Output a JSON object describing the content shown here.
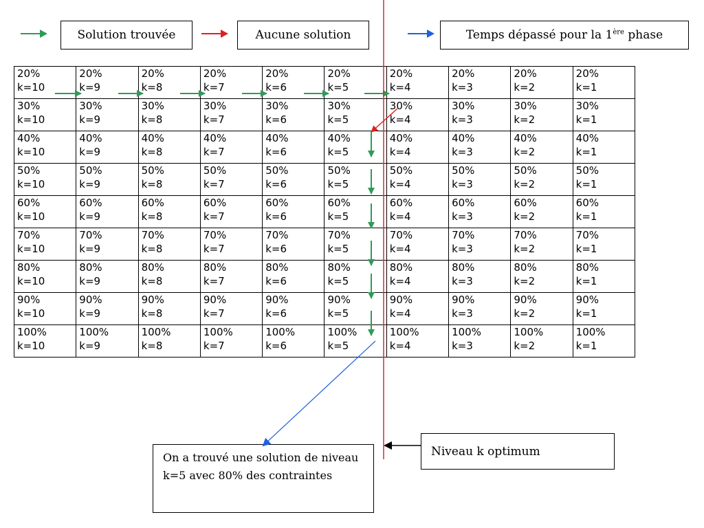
{
  "legend": {
    "found": "Solution trouvée",
    "none": "Aucune solution",
    "timeout_prefix": "Temps dépassé pour la 1",
    "timeout_sup": "ère",
    "timeout_suffix": " phase"
  },
  "colors": {
    "found": "#2e9b57",
    "none": "#e02020",
    "timeout": "#2060e0",
    "optimum_line": "#d03030"
  },
  "grid": {
    "rows": [
      {
        "pct": "20%",
        "ks": [
          "k=10",
          "k=9",
          "k=8",
          "k=7",
          "k=6",
          "k=5",
          "k=4",
          "k=3",
          "k=2",
          "k=1"
        ]
      },
      {
        "pct": "30%",
        "ks": [
          "k=10",
          "k=9",
          "k=8",
          "k=7",
          "k=6",
          "k=5",
          "k=4",
          "k=3",
          "k=2",
          "k=1"
        ]
      },
      {
        "pct": "40%",
        "ks": [
          "k=10",
          "k=9",
          "k=8",
          "k=7",
          "k=6",
          "k=5",
          "k=4",
          "k=3",
          "k=2",
          "k=1"
        ]
      },
      {
        "pct": "50%",
        "ks": [
          "k=10",
          "k=9",
          "k=8",
          "k=7",
          "k=6",
          "k=5",
          "k=4",
          "k=3",
          "k=2",
          "k=1"
        ]
      },
      {
        "pct": "60%",
        "ks": [
          "k=10",
          "k=9",
          "k=8",
          "k=7",
          "k=6",
          "k=5",
          "k=4",
          "k=3",
          "k=2",
          "k=1"
        ]
      },
      {
        "pct": "70%",
        "ks": [
          "k=10",
          "k=9",
          "k=8",
          "k=7",
          "k=6",
          "k=5",
          "k=4",
          "k=3",
          "k=2",
          "k=1"
        ]
      },
      {
        "pct": "80%",
        "ks": [
          "k=10",
          "k=9",
          "k=8",
          "k=7",
          "k=6",
          "k=5",
          "k=4",
          "k=3",
          "k=2",
          "k=1"
        ]
      },
      {
        "pct": "90%",
        "ks": [
          "k=10",
          "k=9",
          "k=8",
          "k=7",
          "k=6",
          "k=5",
          "k=4",
          "k=3",
          "k=2",
          "k=1"
        ]
      },
      {
        "pct": "100%",
        "ks": [
          "k=10",
          "k=9",
          "k=8",
          "k=7",
          "k=6",
          "k=5",
          "k=4",
          "k=3",
          "k=2",
          "k=1"
        ]
      }
    ]
  },
  "notes": {
    "solution_found": "On a trouvé une solution de niveau k=5 avec 80% des contraintes",
    "optimum": "Niveau k optimum"
  }
}
